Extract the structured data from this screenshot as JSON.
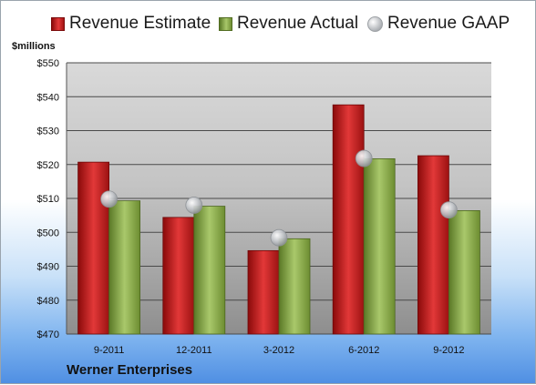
{
  "legend": {
    "estimate": "Revenue Estimate",
    "actual": "Revenue Actual",
    "gaap": "Revenue GAAP"
  },
  "units_label": "$millions",
  "company": "Werner Enterprises",
  "colors": {
    "estimate": "#c81e1e",
    "actual": "#8cac4e",
    "gaap": "#c8cacd"
  },
  "chart_data": {
    "type": "bar",
    "categories": [
      "9-2011",
      "12-2011",
      "3-2012",
      "6-2012",
      "9-2012"
    ],
    "series": [
      {
        "name": "Revenue Estimate",
        "values": [
          520.7,
          504.4,
          494.6,
          537.6,
          522.6
        ]
      },
      {
        "name": "Revenue Actual",
        "values": [
          509.3,
          507.7,
          498.1,
          521.7,
          506.4
        ]
      },
      {
        "name": "Revenue GAAP",
        "values": [
          509.8,
          508.0,
          498.4,
          521.8,
          506.6
        ]
      }
    ],
    "ylim": [
      470,
      550
    ],
    "yticks": [
      470,
      480,
      490,
      500,
      510,
      520,
      530,
      540,
      550
    ],
    "ytick_labels": [
      "$470",
      "$480",
      "$490",
      "$500",
      "$510",
      "$520",
      "$530",
      "$540",
      "$550"
    ],
    "grid": true,
    "legend_position": "top"
  }
}
